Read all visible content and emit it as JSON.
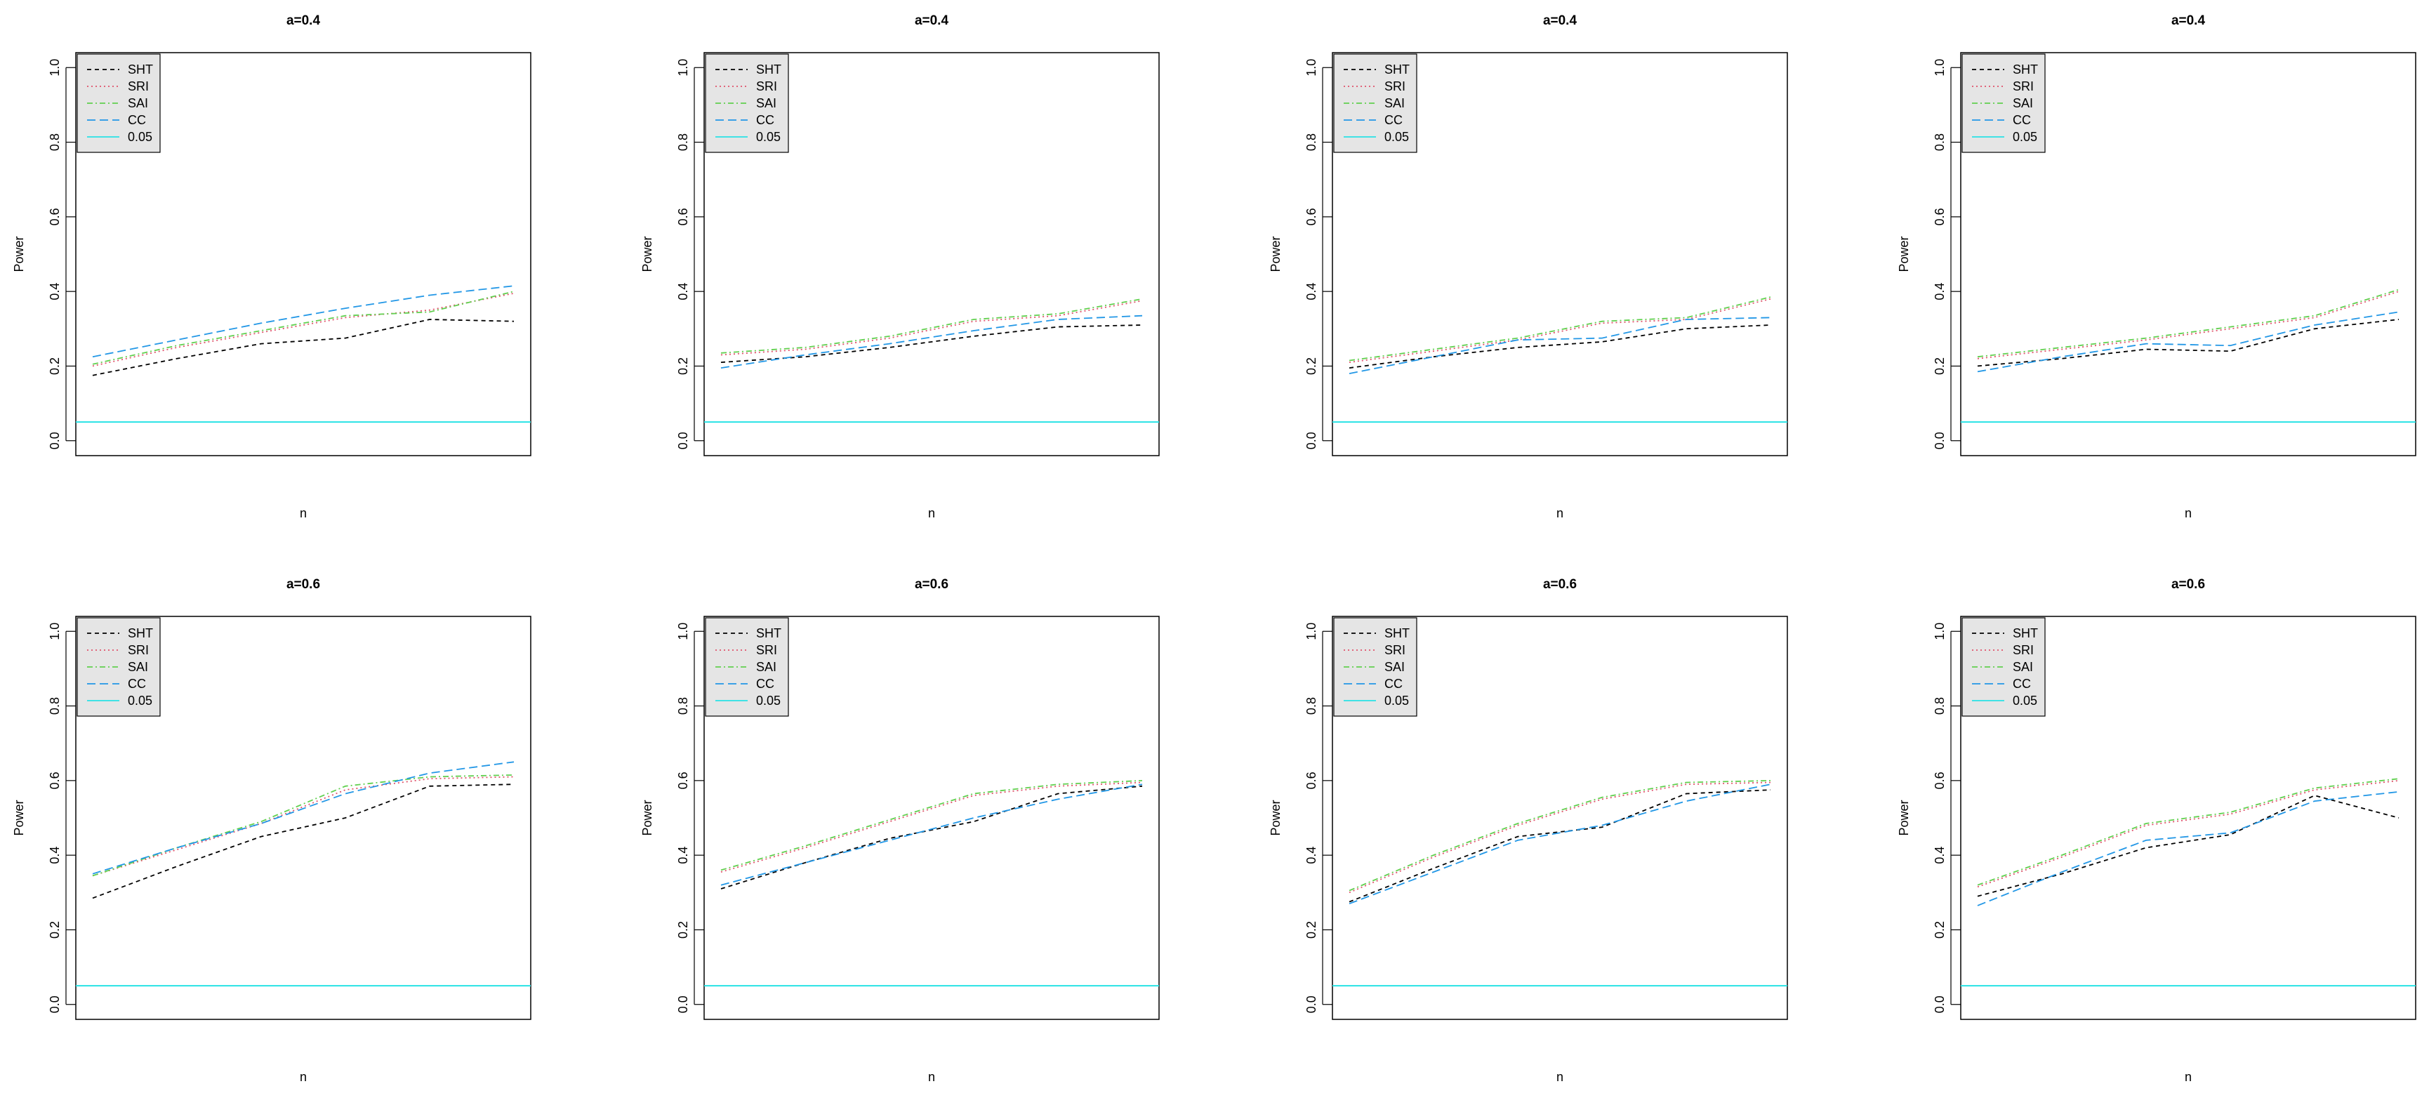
{
  "colors": {
    "SHT": "#000000",
    "SRI": "#DF536B",
    "SAI": "#61D04F",
    "CC": "#2297E6",
    "0.05": "#28E2E5",
    "legend_bg": "#e5e5e5",
    "frame": "#000000"
  },
  "chart_data": [
    {
      "type": "line",
      "title": "a=0.4",
      "xlabel": "n",
      "ylabel": "Power",
      "ylim": [
        0,
        1
      ],
      "x": [
        1,
        2,
        3,
        4,
        5,
        6
      ],
      "yticks": [
        "0.0",
        "0.2",
        "0.4",
        "0.6",
        "0.8",
        "1.0"
      ],
      "legend_position": "top-left",
      "grid": false,
      "legend": [
        "SHT",
        "SRI",
        "SAI",
        "CC",
        "0.05"
      ],
      "hline": 0.05,
      "series": [
        {
          "name": "SHT",
          "values": [
            0.175,
            0.22,
            0.26,
            0.275,
            0.325,
            0.32
          ]
        },
        {
          "name": "SRI",
          "values": [
            0.2,
            0.25,
            0.29,
            0.33,
            0.35,
            0.395
          ]
        },
        {
          "name": "SAI",
          "values": [
            0.205,
            0.255,
            0.295,
            0.335,
            0.345,
            0.4
          ]
        },
        {
          "name": "CC",
          "values": [
            0.225,
            0.27,
            0.315,
            0.355,
            0.39,
            0.415
          ]
        }
      ]
    },
    {
      "type": "line",
      "title": "a=0.4",
      "xlabel": "n",
      "ylabel": "Power",
      "ylim": [
        0,
        1
      ],
      "x": [
        1,
        2,
        3,
        4,
        5,
        6
      ],
      "yticks": [
        "0.0",
        "0.2",
        "0.4",
        "0.6",
        "0.8",
        "1.0"
      ],
      "legend_position": "top-left",
      "grid": false,
      "legend": [
        "SHT",
        "SRI",
        "SAI",
        "CC",
        "0.05"
      ],
      "hline": 0.05,
      "series": [
        {
          "name": "SHT",
          "values": [
            0.21,
            0.225,
            0.25,
            0.28,
            0.305,
            0.31
          ]
        },
        {
          "name": "SRI",
          "values": [
            0.23,
            0.245,
            0.275,
            0.32,
            0.335,
            0.375
          ]
        },
        {
          "name": "SAI",
          "values": [
            0.235,
            0.25,
            0.28,
            0.325,
            0.34,
            0.38
          ]
        },
        {
          "name": "CC",
          "values": [
            0.195,
            0.23,
            0.26,
            0.295,
            0.325,
            0.335
          ]
        }
      ]
    },
    {
      "type": "line",
      "title": "a=0.4",
      "xlabel": "n",
      "ylabel": "Power",
      "ylim": [
        0,
        1
      ],
      "x": [
        1,
        2,
        3,
        4,
        5,
        6
      ],
      "yticks": [
        "0.0",
        "0.2",
        "0.4",
        "0.6",
        "0.8",
        "1.0"
      ],
      "legend_position": "top-left",
      "grid": false,
      "legend": [
        "SHT",
        "SRI",
        "SAI",
        "CC",
        "0.05"
      ],
      "hline": 0.05,
      "series": [
        {
          "name": "SHT",
          "values": [
            0.195,
            0.225,
            0.25,
            0.265,
            0.3,
            0.31
          ]
        },
        {
          "name": "SRI",
          "values": [
            0.21,
            0.24,
            0.27,
            0.315,
            0.325,
            0.38
          ]
        },
        {
          "name": "SAI",
          "values": [
            0.215,
            0.245,
            0.275,
            0.32,
            0.33,
            0.385
          ]
        },
        {
          "name": "CC",
          "values": [
            0.18,
            0.225,
            0.27,
            0.275,
            0.325,
            0.33
          ]
        }
      ]
    },
    {
      "type": "line",
      "title": "a=0.4",
      "xlabel": "n",
      "ylabel": "Power",
      "ylim": [
        0,
        1
      ],
      "x": [
        1,
        2,
        3,
        4,
        5,
        6
      ],
      "yticks": [
        "0.0",
        "0.2",
        "0.4",
        "0.6",
        "0.8",
        "1.0"
      ],
      "legend_position": "top-left",
      "grid": false,
      "legend": [
        "SHT",
        "SRI",
        "SAI",
        "CC",
        "0.05"
      ],
      "hline": 0.05,
      "series": [
        {
          "name": "SHT",
          "values": [
            0.2,
            0.22,
            0.245,
            0.24,
            0.3,
            0.325
          ]
        },
        {
          "name": "SRI",
          "values": [
            0.22,
            0.245,
            0.27,
            0.3,
            0.33,
            0.4
          ]
        },
        {
          "name": "SAI",
          "values": [
            0.225,
            0.25,
            0.275,
            0.305,
            0.335,
            0.405
          ]
        },
        {
          "name": "CC",
          "values": [
            0.185,
            0.225,
            0.26,
            0.255,
            0.31,
            0.345
          ]
        }
      ]
    },
    {
      "type": "line",
      "title": "a=0.6",
      "xlabel": "n",
      "ylabel": "Power",
      "ylim": [
        0,
        1
      ],
      "x": [
        1,
        2,
        3,
        4,
        5,
        6
      ],
      "yticks": [
        "0.0",
        "0.2",
        "0.4",
        "0.6",
        "0.8",
        "1.0"
      ],
      "legend_position": "top-left",
      "grid": false,
      "legend": [
        "SHT",
        "SRI",
        "SAI",
        "CC",
        "0.05"
      ],
      "hline": 0.05,
      "series": [
        {
          "name": "SHT",
          "values": [
            0.285,
            0.37,
            0.45,
            0.5,
            0.585,
            0.59
          ]
        },
        {
          "name": "SRI",
          "values": [
            0.345,
            0.415,
            0.485,
            0.575,
            0.605,
            0.61
          ]
        },
        {
          "name": "SAI",
          "values": [
            0.345,
            0.42,
            0.49,
            0.585,
            0.61,
            0.615
          ]
        },
        {
          "name": "CC",
          "values": [
            0.35,
            0.42,
            0.485,
            0.565,
            0.62,
            0.65
          ]
        }
      ]
    },
    {
      "type": "line",
      "title": "a=0.6",
      "xlabel": "n",
      "ylabel": "Power",
      "ylim": [
        0,
        1
      ],
      "x": [
        1,
        2,
        3,
        4,
        5,
        6
      ],
      "yticks": [
        "0.0",
        "0.2",
        "0.4",
        "0.6",
        "0.8",
        "1.0"
      ],
      "legend_position": "top-left",
      "grid": false,
      "legend": [
        "SHT",
        "SRI",
        "SAI",
        "CC",
        "0.05"
      ],
      "hline": 0.05,
      "series": [
        {
          "name": "SHT",
          "values": [
            0.31,
            0.38,
            0.445,
            0.49,
            0.565,
            0.585
          ]
        },
        {
          "name": "SRI",
          "values": [
            0.355,
            0.42,
            0.49,
            0.56,
            0.585,
            0.595
          ]
        },
        {
          "name": "SAI",
          "values": [
            0.36,
            0.425,
            0.495,
            0.565,
            0.59,
            0.6
          ]
        },
        {
          "name": "CC",
          "values": [
            0.32,
            0.38,
            0.44,
            0.5,
            0.55,
            0.59
          ]
        }
      ]
    },
    {
      "type": "line",
      "title": "a=0.6",
      "xlabel": "n",
      "ylabel": "Power",
      "ylim": [
        0,
        1
      ],
      "x": [
        1,
        2,
        3,
        4,
        5,
        6
      ],
      "yticks": [
        "0.0",
        "0.2",
        "0.4",
        "0.6",
        "0.8",
        "1.0"
      ],
      "legend_position": "top-left",
      "grid": false,
      "legend": [
        "SHT",
        "SRI",
        "SAI",
        "CC",
        "0.05"
      ],
      "hline": 0.05,
      "series": [
        {
          "name": "SHT",
          "values": [
            0.275,
            0.365,
            0.45,
            0.475,
            0.565,
            0.575
          ]
        },
        {
          "name": "SRI",
          "values": [
            0.3,
            0.395,
            0.48,
            0.55,
            0.59,
            0.595
          ]
        },
        {
          "name": "SAI",
          "values": [
            0.305,
            0.4,
            0.485,
            0.555,
            0.595,
            0.6
          ]
        },
        {
          "name": "CC",
          "values": [
            0.27,
            0.355,
            0.44,
            0.48,
            0.545,
            0.59
          ]
        }
      ]
    },
    {
      "type": "line",
      "title": "a=0.6",
      "xlabel": "n",
      "ylabel": "Power",
      "ylim": [
        0,
        1
      ],
      "x": [
        1,
        2,
        3,
        4,
        5,
        6
      ],
      "yticks": [
        "0.0",
        "0.2",
        "0.4",
        "0.6",
        "0.8",
        "1.0"
      ],
      "legend_position": "top-left",
      "grid": false,
      "legend": [
        "SHT",
        "SRI",
        "SAI",
        "CC",
        "0.05"
      ],
      "hline": 0.05,
      "series": [
        {
          "name": "SHT",
          "values": [
            0.29,
            0.35,
            0.42,
            0.455,
            0.56,
            0.5
          ]
        },
        {
          "name": "SRI",
          "values": [
            0.315,
            0.395,
            0.48,
            0.51,
            0.575,
            0.6
          ]
        },
        {
          "name": "SAI",
          "values": [
            0.32,
            0.4,
            0.485,
            0.515,
            0.58,
            0.605
          ]
        },
        {
          "name": "CC",
          "values": [
            0.265,
            0.355,
            0.44,
            0.46,
            0.545,
            0.57
          ]
        }
      ]
    }
  ]
}
